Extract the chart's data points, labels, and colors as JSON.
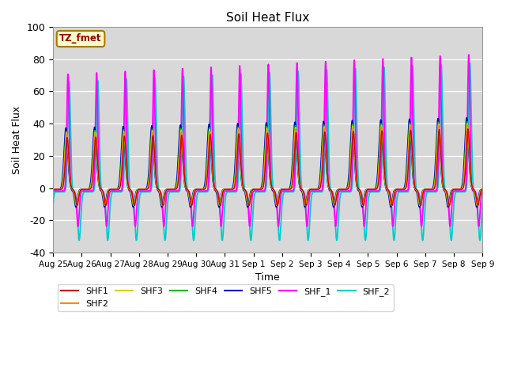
{
  "title": "Soil Heat Flux",
  "xlabel": "Time",
  "ylabel": "Soil Heat Flux",
  "ylim": [
    -40,
    100
  ],
  "annotation_text": "TZ_fmet",
  "series": {
    "SHF1": {
      "color": "#cc0000",
      "lw": 1.0
    },
    "SHF2": {
      "color": "#ff8800",
      "lw": 1.0
    },
    "SHF3": {
      "color": "#ddcc00",
      "lw": 1.0
    },
    "SHF4": {
      "color": "#00bb00",
      "lw": 1.0
    },
    "SHF5": {
      "color": "#0000cc",
      "lw": 1.2
    },
    "SHF_1": {
      "color": "#ff00ff",
      "lw": 1.3
    },
    "SHF_2": {
      "color": "#00cccc",
      "lw": 1.3
    }
  },
  "xtick_labels": [
    "Aug 25",
    "Aug 26",
    "Aug 27",
    "Aug 28",
    "Aug 29",
    "Aug 30",
    "Aug 31",
    "Sep 1",
    "Sep 2",
    "Sep 3",
    "Sep 4",
    "Sep 5",
    "Sep 6",
    "Sep 7",
    "Sep 8",
    "Sep 9"
  ],
  "ytick_vals": [
    -40,
    -20,
    0,
    20,
    40,
    60,
    80,
    100
  ],
  "background_color": "#d8d8d8"
}
